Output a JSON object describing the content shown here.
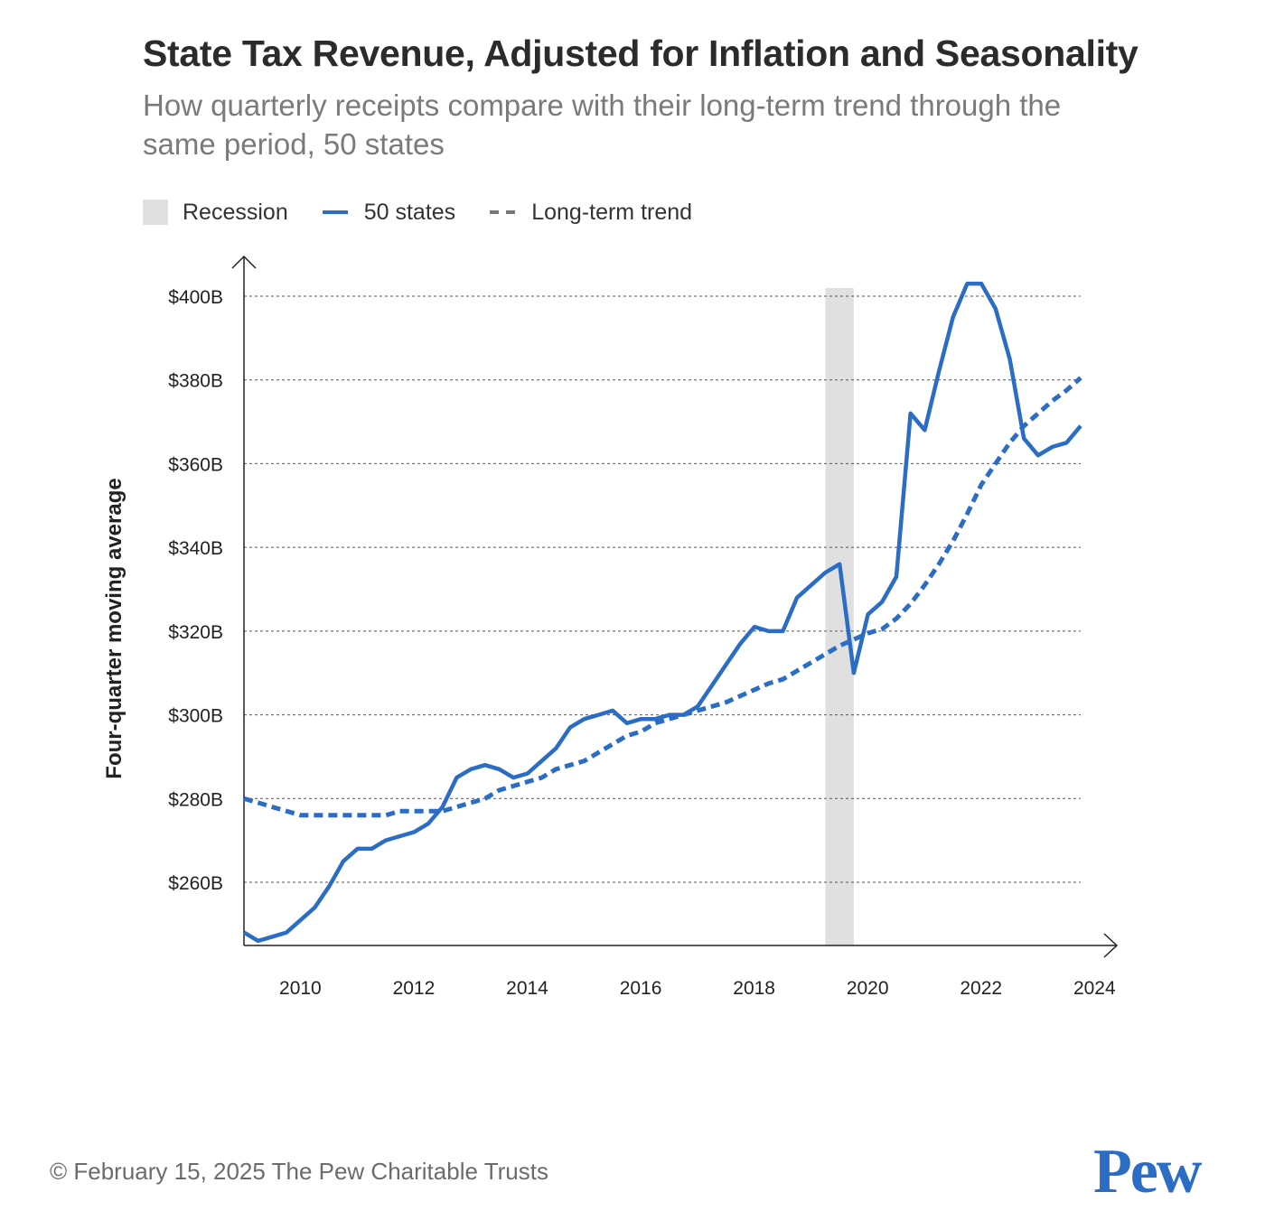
{
  "header": {
    "title": "State Tax Revenue, Adjusted for Inflation and Seasonality",
    "subtitle": "How quarterly receipts compare with their long-term trend through the same period, 50 states"
  },
  "legend": {
    "recession": "Recession",
    "series_50": "50 states",
    "trend": "Long-term trend"
  },
  "colors": {
    "series": "#2b6cc4",
    "recession": "#e0e0e0",
    "grid": "#555555",
    "axis": "#222222"
  },
  "footer": {
    "copyright": "© February 15, 2025 The Pew Charitable Trusts",
    "logo": "Pew"
  },
  "chart_data": {
    "type": "line",
    "ylabel": "Four-quarter moving average",
    "xlabel": "",
    "xlim": [
      2009.5,
      2024.25
    ],
    "ylim": [
      245,
      405
    ],
    "y_ticks": [
      260,
      280,
      300,
      320,
      340,
      360,
      380,
      400
    ],
    "y_tick_labels": [
      "$260B",
      "$280B",
      "$300B",
      "$320B",
      "$340B",
      "$360B",
      "$380B",
      "$400B"
    ],
    "x_ticks": [
      2010,
      2012,
      2014,
      2016,
      2018,
      2020,
      2022,
      2024
    ],
    "x_tick_labels": [
      "2010",
      "2012",
      "2014",
      "2016",
      "2018",
      "2020",
      "2022",
      "2024"
    ],
    "grid": "horizontal dashed",
    "legend_position": "top-left",
    "recession": {
      "start": 2019.75,
      "end": 2020.25
    },
    "series": [
      {
        "name": "50 states",
        "style": "solid",
        "x": [
          2009.5,
          2009.75,
          2010,
          2010.25,
          2010.5,
          2010.75,
          2011,
          2011.25,
          2011.5,
          2011.75,
          2012,
          2012.25,
          2012.5,
          2012.75,
          2013,
          2013.25,
          2013.5,
          2013.75,
          2014,
          2014.25,
          2014.5,
          2014.75,
          2015,
          2015.25,
          2015.5,
          2015.75,
          2016,
          2016.25,
          2016.5,
          2016.75,
          2017,
          2017.25,
          2017.5,
          2017.75,
          2018,
          2018.25,
          2018.5,
          2018.75,
          2019,
          2019.25,
          2019.5,
          2019.75,
          2020,
          2020.25,
          2020.5,
          2020.75,
          2021,
          2021.25,
          2021.5,
          2021.75,
          2022,
          2022.25,
          2022.5,
          2022.75,
          2023,
          2023.25,
          2023.5,
          2023.75,
          2024,
          2024.25
        ],
        "values": [
          248,
          246,
          247,
          248,
          251,
          254,
          259,
          265,
          268,
          268,
          270,
          271,
          272,
          274,
          278,
          285,
          287,
          288,
          287,
          285,
          286,
          289,
          292,
          297,
          299,
          300,
          301,
          298,
          299,
          299,
          300,
          300,
          302,
          307,
          312,
          317,
          321,
          320,
          320,
          328,
          331,
          334,
          336,
          310,
          324,
          327,
          333,
          372,
          368,
          382,
          395,
          403,
          403,
          397,
          385,
          366,
          362,
          364,
          365,
          369
        ]
      },
      {
        "name": "Long-term trend",
        "style": "dashed",
        "x": [
          2009.5,
          2009.75,
          2010,
          2010.25,
          2010.5,
          2010.75,
          2011,
          2011.25,
          2011.5,
          2011.75,
          2012,
          2012.25,
          2012.5,
          2012.75,
          2013,
          2013.25,
          2013.5,
          2013.75,
          2014,
          2014.25,
          2014.5,
          2014.75,
          2015,
          2015.25,
          2015.5,
          2015.75,
          2016,
          2016.25,
          2016.5,
          2016.75,
          2017,
          2017.25,
          2017.5,
          2017.75,
          2018,
          2018.25,
          2018.5,
          2018.75,
          2019,
          2019.25,
          2019.5,
          2019.75,
          2020,
          2020.25,
          2020.5,
          2020.75,
          2021,
          2021.25,
          2021.5,
          2021.75,
          2022,
          2022.25,
          2022.5,
          2022.75,
          2023,
          2023.25,
          2023.5,
          2023.75,
          2024,
          2024.25
        ],
        "values": [
          280,
          279,
          278,
          277,
          276,
          276,
          276,
          276,
          276,
          276,
          276,
          277,
          277,
          277,
          277,
          278,
          279,
          280,
          282,
          283,
          284,
          285,
          287,
          288,
          289,
          291,
          293,
          295,
          296,
          298,
          299,
          300,
          301,
          302,
          303,
          304.5,
          306,
          307.5,
          308.5,
          310.5,
          312.5,
          314.5,
          316.5,
          318,
          319.5,
          320.5,
          323,
          326.5,
          331,
          336,
          341.5,
          348,
          355,
          360,
          365,
          369,
          372,
          375,
          377.5,
          380.5
        ]
      }
    ]
  }
}
